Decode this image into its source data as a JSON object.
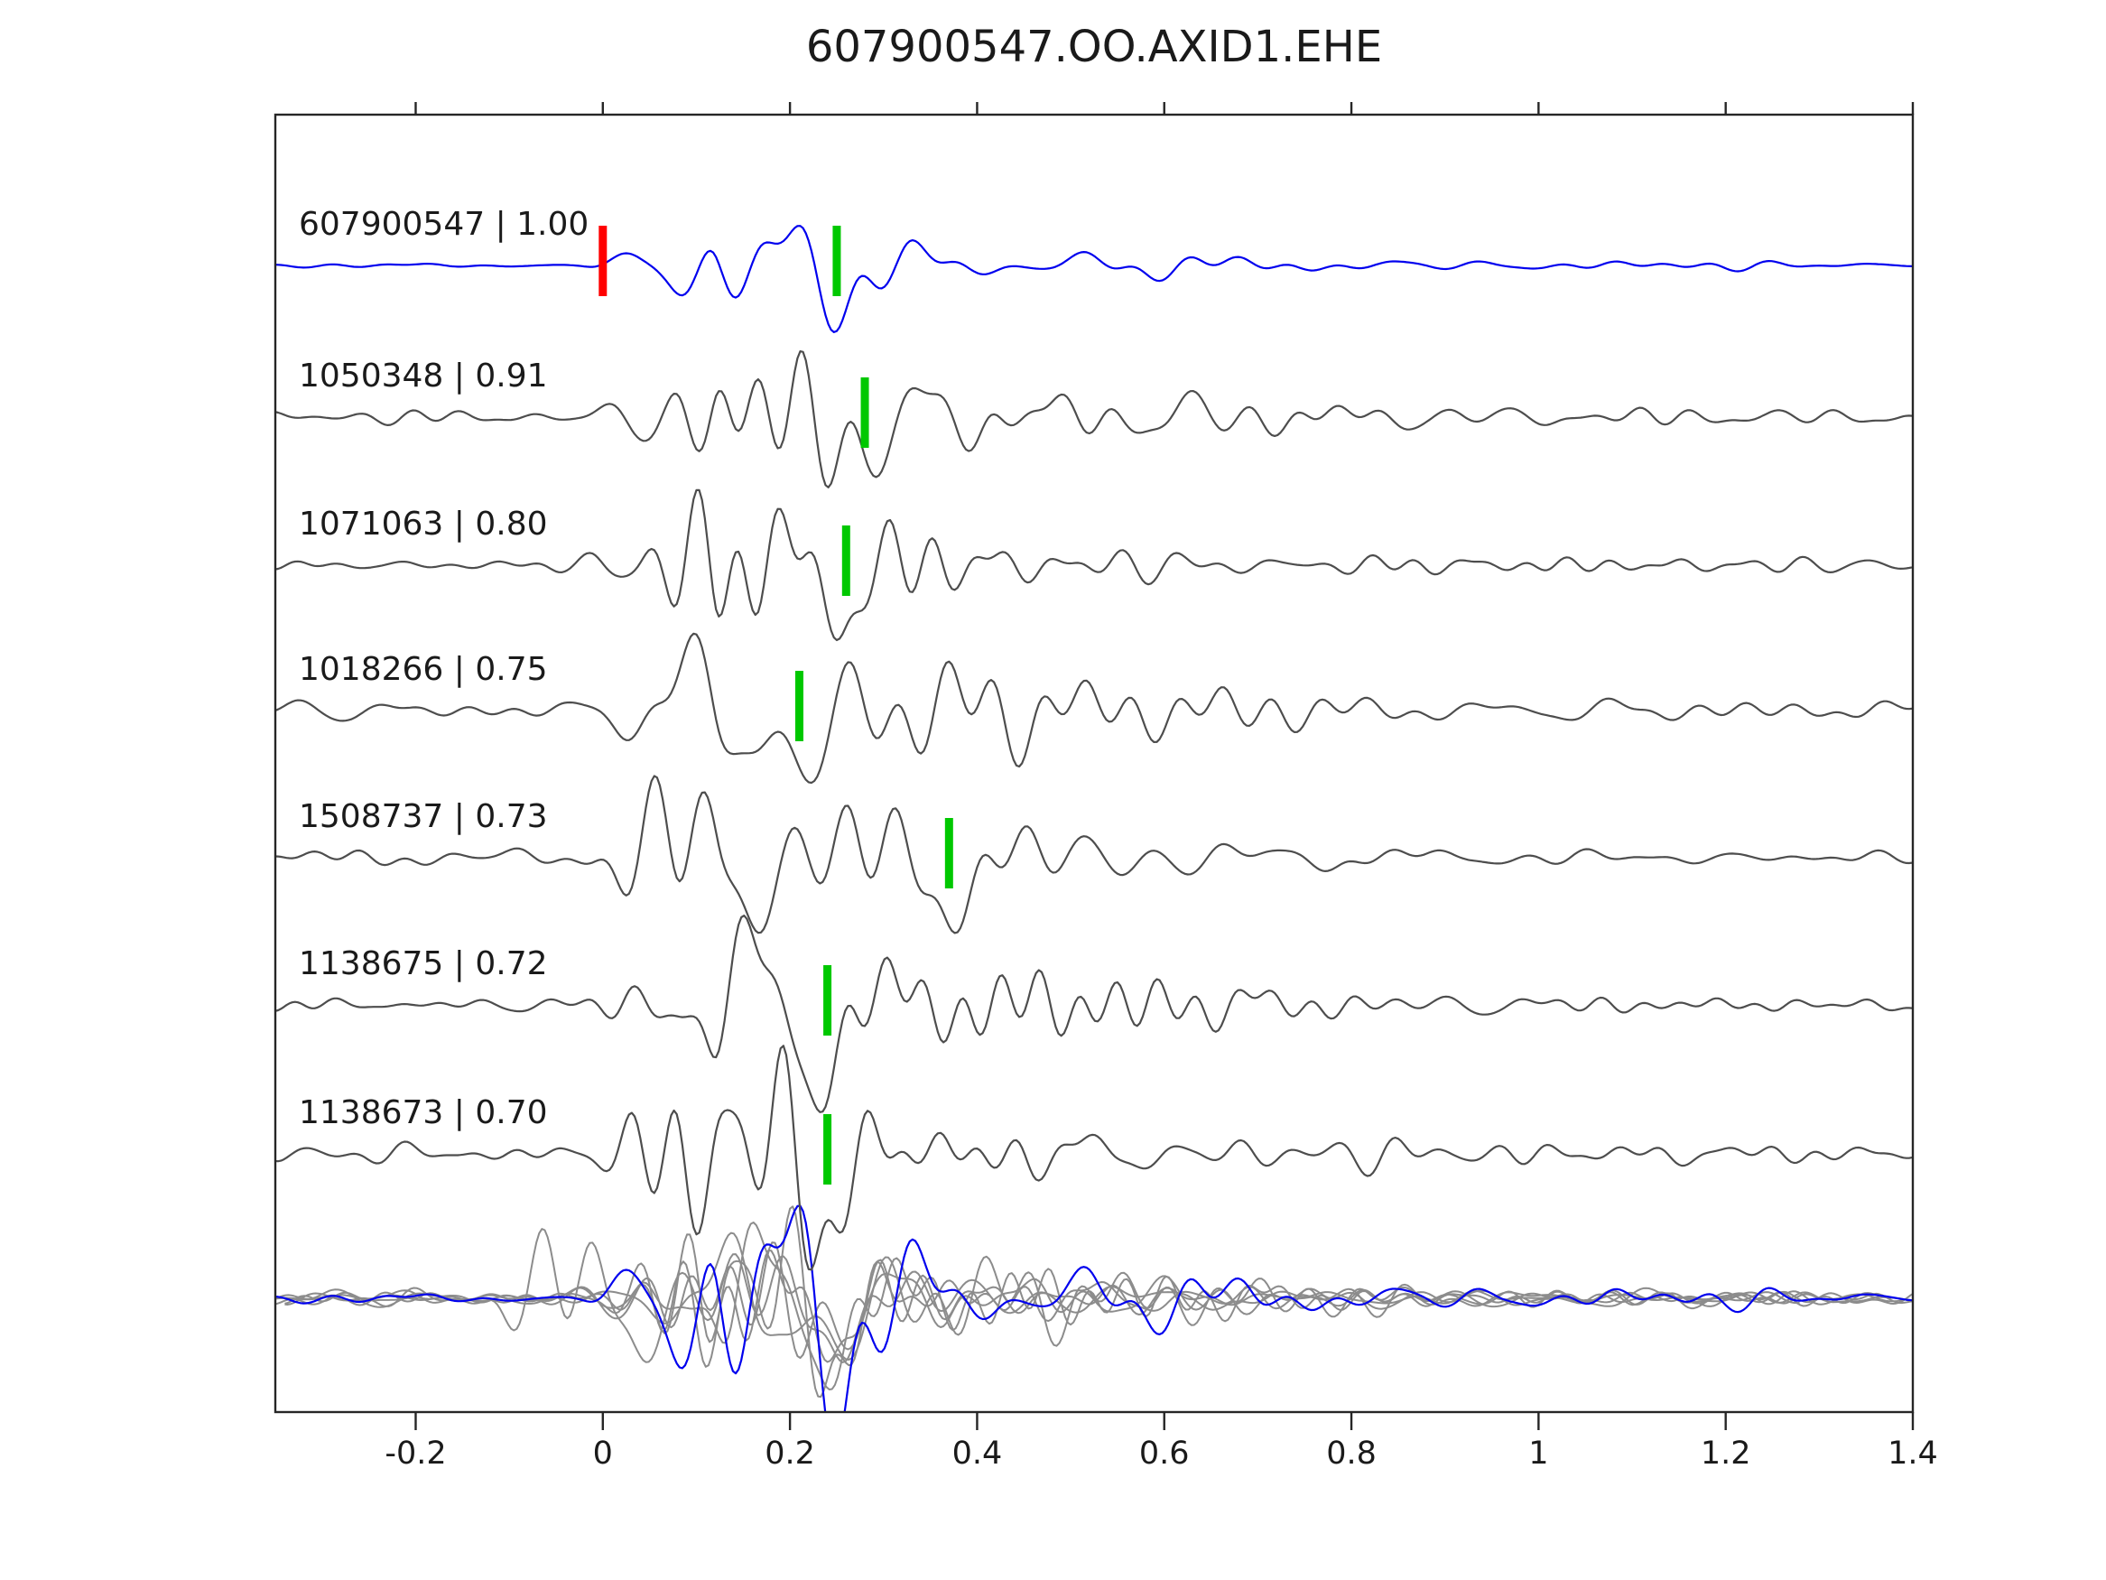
{
  "title": "607900547.OO.AXID1.EHE",
  "chart_data": {
    "type": "line",
    "title": "607900547.OO.AXID1.EHE",
    "xlabel": "",
    "ylabel": "",
    "xlim": [
      -0.35,
      1.4
    ],
    "x_tick_values": [
      -0.2,
      0,
      0.2,
      0.4,
      0.6,
      0.8,
      1.0,
      1.2,
      1.4
    ],
    "x_tick_labels": [
      "-0.2",
      "0",
      "0.2",
      "0.4",
      "0.6",
      "0.8",
      "1",
      "1.2",
      "1.4"
    ],
    "grid": false,
    "legend": "none",
    "traces": [
      {
        "id": "607900547",
        "correlation": 1.0,
        "label": "607900547 | 1.00",
        "color": "#0000ee",
        "pick_time": 0.25,
        "reference_marker_time": 0.0,
        "relative_amplitude": 0.62
      },
      {
        "id": "1050348",
        "correlation": 0.91,
        "label": "1050348 | 0.91",
        "color": "#4d4d4d",
        "pick_time": 0.28,
        "relative_amplitude": 0.95
      },
      {
        "id": "1071063",
        "correlation": 0.8,
        "label": "1071063 | 0.80",
        "color": "#4d4d4d",
        "pick_time": 0.26,
        "relative_amplitude": 0.95
      },
      {
        "id": "1018266",
        "correlation": 0.75,
        "label": "1018266 | 0.75",
        "color": "#4d4d4d",
        "pick_time": 0.21,
        "relative_amplitude": 1.35
      },
      {
        "id": "1508737",
        "correlation": 0.73,
        "label": "1508737 | 0.73",
        "color": "#4d4d4d",
        "pick_time": 0.37,
        "relative_amplitude": 1.4
      },
      {
        "id": "1138675",
        "correlation": 0.72,
        "label": "1138675 | 0.72",
        "color": "#4d4d4d",
        "pick_time": 0.24,
        "relative_amplitude": 1.15
      },
      {
        "id": "1138673",
        "correlation": 0.7,
        "label": "1138673 | 0.70",
        "color": "#4d4d4d",
        "pick_time": 0.24,
        "relative_amplitude": 1.18
      }
    ],
    "overlay_row": {
      "gray_color": "#8c8c8c",
      "reference_color": "#0000ee",
      "relative_amplitude": 0.85
    }
  },
  "colors": {
    "background": "#ffffff",
    "axes_border": "#262626",
    "text": "#1a1a1a",
    "pick_marker": "#00c800",
    "reference_marker": "#ff0000"
  }
}
